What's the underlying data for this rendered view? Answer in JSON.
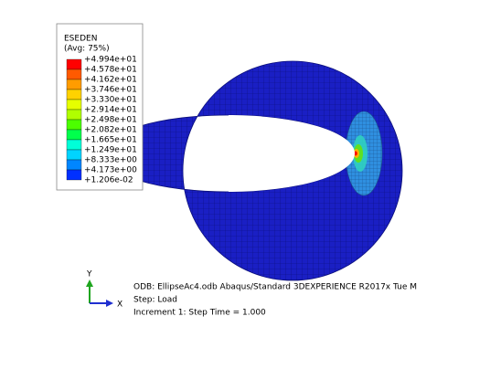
{
  "legend": {
    "title": "ESEDEN",
    "subtitle": "(Avg: 75%)",
    "labels": [
      "+4.994e+01",
      "+4.578e+01",
      "+4.162e+01",
      "+3.746e+01",
      "+3.330e+01",
      "+2.914e+01",
      "+2.498e+01",
      "+2.082e+01",
      "+1.665e+01",
      "+1.249e+01",
      "+8.333e+00",
      "+4.173e+00",
      "+1.206e-02"
    ],
    "colors": [
      "#ff0000",
      "#ff5a00",
      "#ff9c00",
      "#ffd200",
      "#e6ff00",
      "#b0ff00",
      "#4cff00",
      "#00ff4c",
      "#00ffd8",
      "#00d4ff",
      "#0086ff",
      "#0030ff"
    ]
  },
  "triad": {
    "y": "Y",
    "x": "X"
  },
  "info": {
    "line1": "ODB: EllipseAc4.odb    Abaqus/Standard 3DEXPERIENCE R2017x    Tue M",
    "line2": "Step: Load",
    "line3": "Increment      1: Step Time =    1.000"
  }
}
